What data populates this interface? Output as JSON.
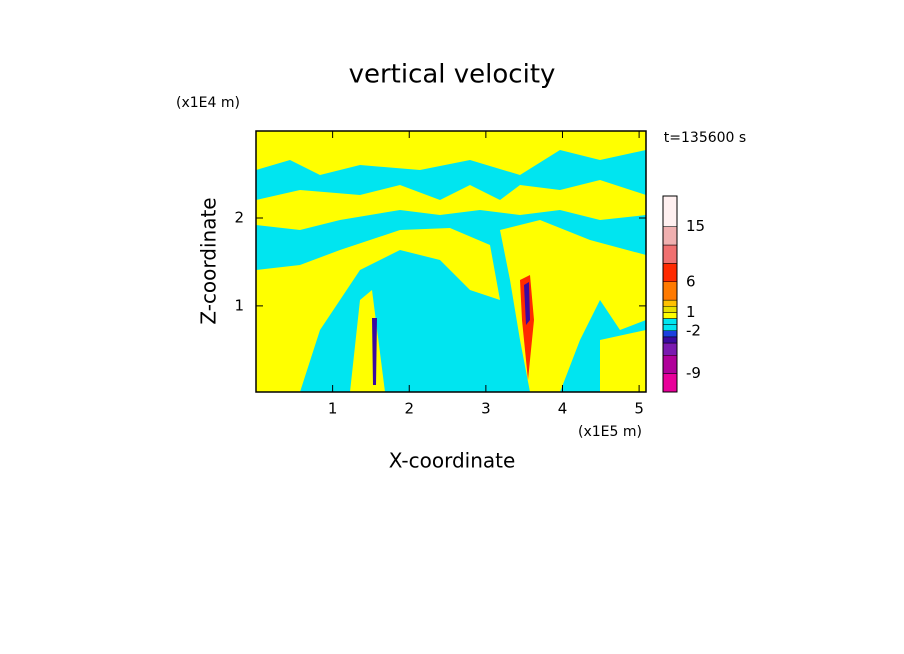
{
  "chart_data": {
    "type": "contour",
    "title": "vertical velocity",
    "x_label": "X-coordinate",
    "y_label": "Z-coordinate",
    "x_scale_label": "(x1E5 m)",
    "y_scale_label": "(x1E4 m)",
    "annotation": "t=135600 s",
    "xlim": [
      0,
      5.09
    ],
    "ylim": [
      0.02,
      2.99
    ],
    "xticks": [
      1,
      2,
      3,
      4,
      5
    ],
    "yticks": [
      1,
      2
    ],
    "colorbar": {
      "clim": [
        -12,
        20
      ],
      "levels": [
        -12,
        -9,
        -6,
        -4,
        -3,
        -2,
        -1,
        0,
        1,
        2,
        3,
        6,
        9,
        12,
        15,
        20
      ],
      "colors": [
        "#e8009a",
        "#b0009a",
        "#7a1ab0",
        "#3a0aa0",
        "#1a40e0",
        "#00e5f0",
        "#00e5f0",
        "#ffff00",
        "#e8e000",
        "#ffc000",
        "#ff7a00",
        "#ff2a00",
        "#f07070",
        "#f0b0b0",
        "#fff0f0"
      ],
      "ticks": [
        -9,
        -2,
        1,
        6,
        15
      ]
    }
  }
}
